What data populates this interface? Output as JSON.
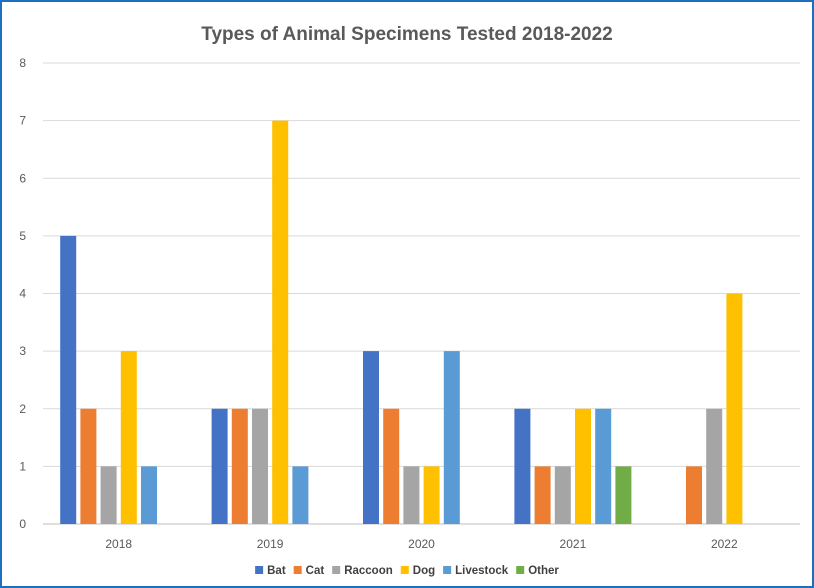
{
  "chart_data": {
    "type": "bar",
    "title": "Types of Animal Specimens Tested 2018-2022",
    "xlabel": "",
    "ylabel": "",
    "categories": [
      "2018",
      "2019",
      "2020",
      "2021",
      "2022"
    ],
    "ylim": [
      0,
      8
    ],
    "yticks": [
      "0",
      "1",
      "2",
      "3",
      "4",
      "5",
      "6",
      "7",
      "8"
    ],
    "grid": true,
    "legend_position": "bottom",
    "series": [
      {
        "name": "Bat",
        "color": "#4472C4",
        "values": [
          5,
          2,
          3,
          2,
          0
        ]
      },
      {
        "name": "Cat",
        "color": "#ED7D31",
        "values": [
          2,
          2,
          2,
          1,
          1
        ]
      },
      {
        "name": "Raccoon",
        "color": "#A5A5A5",
        "values": [
          1,
          2,
          1,
          1,
          2
        ]
      },
      {
        "name": "Dog",
        "color": "#FFC000",
        "values": [
          3,
          7,
          1,
          2,
          4
        ]
      },
      {
        "name": "Livestock",
        "color": "#5B9BD5",
        "values": [
          1,
          1,
          3,
          2,
          0
        ]
      },
      {
        "name": "Other",
        "color": "#70AD47",
        "values": [
          0,
          0,
          0,
          1,
          0
        ]
      }
    ]
  }
}
